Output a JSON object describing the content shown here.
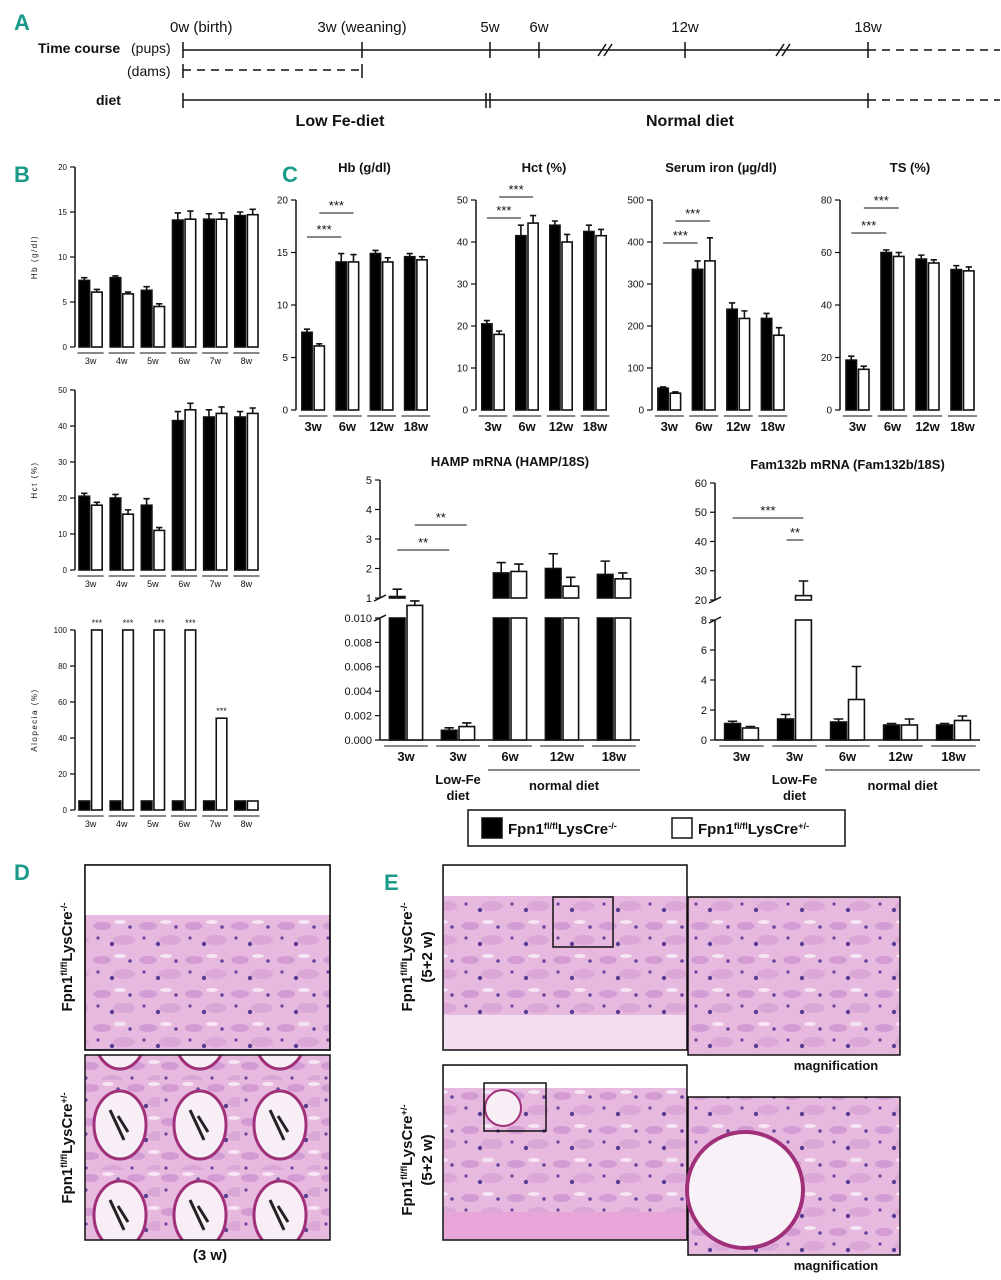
{
  "panel_labels": [
    "A",
    "B",
    "C",
    "D",
    "E"
  ],
  "timeline": {
    "row_labels": [
      "Time course",
      "(pups)",
      "(dams)",
      "diet"
    ],
    "time_points": [
      "0w (birth)",
      "3w (weaning)",
      "5w",
      "6w",
      "12w",
      "18w"
    ],
    "diet_labels": [
      "Low Fe-diet",
      "Normal diet"
    ]
  },
  "legend": [
    {
      "name": "Fpn1fl/flLysCre-/-",
      "color": "#000000"
    },
    {
      "name": "Fpn1fl/flLysCre+/-",
      "color": "#ffffff"
    }
  ],
  "chart_data": [
    {
      "type": "bar",
      "y_label": "Hb (g/dl)",
      "categories": [
        "3w",
        "4w",
        "5w",
        "6w",
        "7w",
        "8w"
      ],
      "series": [
        {
          "values": [
            7.4,
            7.7,
            6.3,
            14.1,
            14.2,
            14.6
          ],
          "errors": [
            0.3,
            0.2,
            0.4,
            0.8,
            0.6,
            0.4
          ]
        },
        {
          "values": [
            6.1,
            5.9,
            4.5,
            14.2,
            14.2,
            14.7
          ],
          "errors": [
            0.3,
            0.2,
            0.3,
            0.9,
            0.7,
            0.6
          ]
        }
      ],
      "ylim": [
        0,
        20
      ],
      "yticks": [
        0,
        5,
        10,
        15,
        20
      ]
    },
    {
      "type": "bar",
      "y_label": "Hct (%)",
      "categories": [
        "3w",
        "4w",
        "5w",
        "6w",
        "7w",
        "8w"
      ],
      "series": [
        {
          "values": [
            20.5,
            20,
            18,
            41.5,
            42.5,
            42.5
          ],
          "errors": [
            0.8,
            1,
            1.8,
            2.5,
            2,
            1.5
          ]
        },
        {
          "values": [
            18,
            15.5,
            11,
            44.5,
            43.5,
            43.5
          ],
          "errors": [
            0.8,
            1.2,
            0.8,
            1.8,
            1.8,
            1.5
          ]
        }
      ],
      "ylim": [
        0,
        50
      ],
      "yticks": [
        0,
        10,
        20,
        30,
        40,
        50
      ]
    },
    {
      "type": "bar",
      "y_label": "Alopecia (%)",
      "categories": [
        "3w",
        "4w",
        "5w",
        "6w",
        "7w",
        "8w"
      ],
      "series": [
        {
          "values": [
            5,
            5,
            5,
            5,
            5,
            5
          ]
        },
        {
          "values": [
            100,
            100,
            100,
            100,
            51,
            5
          ]
        }
      ],
      "ylim": [
        0,
        100
      ],
      "yticks": [
        0,
        20,
        40,
        60,
        80,
        100
      ],
      "annotations": [
        "***",
        "***",
        "***",
        "***",
        "***"
      ]
    },
    {
      "type": "bar",
      "title": "Hb (g/dl)",
      "categories": [
        "3w",
        "6w",
        "12w",
        "18w"
      ],
      "series": [
        {
          "values": [
            7.4,
            14.1,
            14.9,
            14.6
          ],
          "errors": [
            0.3,
            0.8,
            0.3,
            0.3
          ]
        },
        {
          "values": [
            6.1,
            14.1,
            14.1,
            14.3
          ],
          "errors": [
            0.2,
            0.7,
            0.4,
            0.3
          ]
        }
      ],
      "ylim": [
        0,
        20
      ],
      "yticks": [
        0,
        5,
        10,
        15,
        20
      ],
      "annotations": [
        "***",
        "***"
      ]
    },
    {
      "type": "bar",
      "title": "Hct (%)",
      "categories": [
        "3w",
        "6w",
        "12w",
        "18w"
      ],
      "series": [
        {
          "values": [
            20.5,
            41.5,
            44,
            42.5
          ],
          "errors": [
            0.8,
            2.5,
            1,
            1.5
          ]
        },
        {
          "values": [
            18,
            44.5,
            40,
            41.5
          ],
          "errors": [
            0.8,
            1.8,
            1.8,
            1.5
          ]
        }
      ],
      "ylim": [
        0,
        50
      ],
      "yticks": [
        0,
        10,
        20,
        30,
        40,
        50
      ],
      "annotations": [
        "***",
        "***"
      ]
    },
    {
      "type": "bar",
      "title": "Serum iron (µg/dl)",
      "categories": [
        "3w",
        "6w",
        "12w",
        "18w"
      ],
      "series": [
        {
          "values": [
            52,
            335,
            240,
            218
          ],
          "errors": [
            3,
            20,
            15,
            12
          ]
        },
        {
          "values": [
            40,
            355,
            218,
            178
          ],
          "errors": [
            3,
            55,
            18,
            18
          ]
        }
      ],
      "ylim": [
        0,
        500
      ],
      "yticks": [
        0,
        100,
        200,
        300,
        400,
        500
      ],
      "annotations": [
        "***",
        "***"
      ]
    },
    {
      "type": "bar",
      "title": "TS (%)",
      "categories": [
        "3w",
        "6w",
        "12w",
        "18w"
      ],
      "series": [
        {
          "values": [
            19,
            60,
            57.5,
            53.5
          ],
          "errors": [
            1.5,
            1,
            1.5,
            1.5
          ]
        },
        {
          "values": [
            15.5,
            58.5,
            56,
            53
          ],
          "errors": [
            1.2,
            1.5,
            1.2,
            1.5
          ]
        }
      ],
      "ylim": [
        0,
        80
      ],
      "yticks": [
        0,
        20,
        40,
        60,
        80
      ],
      "annotations": [
        "***",
        "***"
      ]
    },
    {
      "type": "bar",
      "title": "HAMP mRNA (HAMP/18S)",
      "categories": [
        "3w",
        "3w",
        "6w",
        "12w",
        "18w"
      ],
      "series": [
        {
          "values": [
            1.05,
            0.0008,
            1.85,
            2.0,
            1.8
          ],
          "errors": [
            0.25,
            0.0002,
            0.35,
            0.5,
            0.45
          ]
        },
        {
          "values": [
            0.75,
            0.0011,
            1.9,
            1.4,
            1.65
          ],
          "errors": [
            0.15,
            0.0003,
            0.25,
            0.3,
            0.2
          ]
        }
      ],
      "ylim": [
        0,
        5
      ],
      "ybreak": [
        0.01,
        1
      ],
      "yticks": [
        {
          "value": 0,
          "label": "0.000"
        },
        {
          "value": 0.002,
          "label": "0.002"
        },
        {
          "value": 0.004,
          "label": "0.004"
        },
        {
          "value": 0.006,
          "label": "0.006"
        },
        {
          "value": 0.008,
          "label": "0.008"
        },
        {
          "value": 0.01,
          "label": "0.010"
        },
        1,
        2,
        3,
        4,
        5
      ],
      "annotations": [
        "**",
        "**"
      ],
      "group_labels": [
        "Low-Fe diet",
        "normal diet"
      ]
    },
    {
      "type": "bar",
      "title": "Fam132b mRNA (Fam132b/18S)",
      "categories": [
        "3w",
        "3w",
        "6w",
        "12w",
        "18w"
      ],
      "series": [
        {
          "values": [
            1.1,
            1.4,
            1.2,
            1.0,
            1.0
          ],
          "errors": [
            0.15,
            0.3,
            0.2,
            0.1,
            0.1
          ]
        },
        {
          "values": [
            0.8,
            21.5,
            2.7,
            1.0,
            1.3
          ],
          "errors": [
            0.1,
            5,
            2.2,
            0.4,
            0.3
          ]
        }
      ],
      "ylim": [
        0,
        60
      ],
      "ybreak": [
        8,
        20
      ],
      "yticks": [
        0,
        2,
        4,
        6,
        8,
        20,
        30,
        40,
        50,
        60
      ],
      "annotations": [
        "***",
        "**"
      ],
      "group_labels": [
        "Low-Fe diet",
        "normal diet"
      ]
    }
  ],
  "histology": {
    "D": {
      "row_labels": [
        "Fpn1fl/flLysCre-/-",
        "Fpn1fl/flLysCre+/-"
      ],
      "caption": "(3 w)"
    },
    "E": {
      "row_labels": [
        "Fpn1fl/flLysCre-/-",
        "Fpn1fl/flLysCre+/-"
      ],
      "timepoints": [
        "(5+2 w)",
        "(5+2 w)"
      ],
      "captions": [
        "magnification",
        "magnification"
      ]
    }
  }
}
